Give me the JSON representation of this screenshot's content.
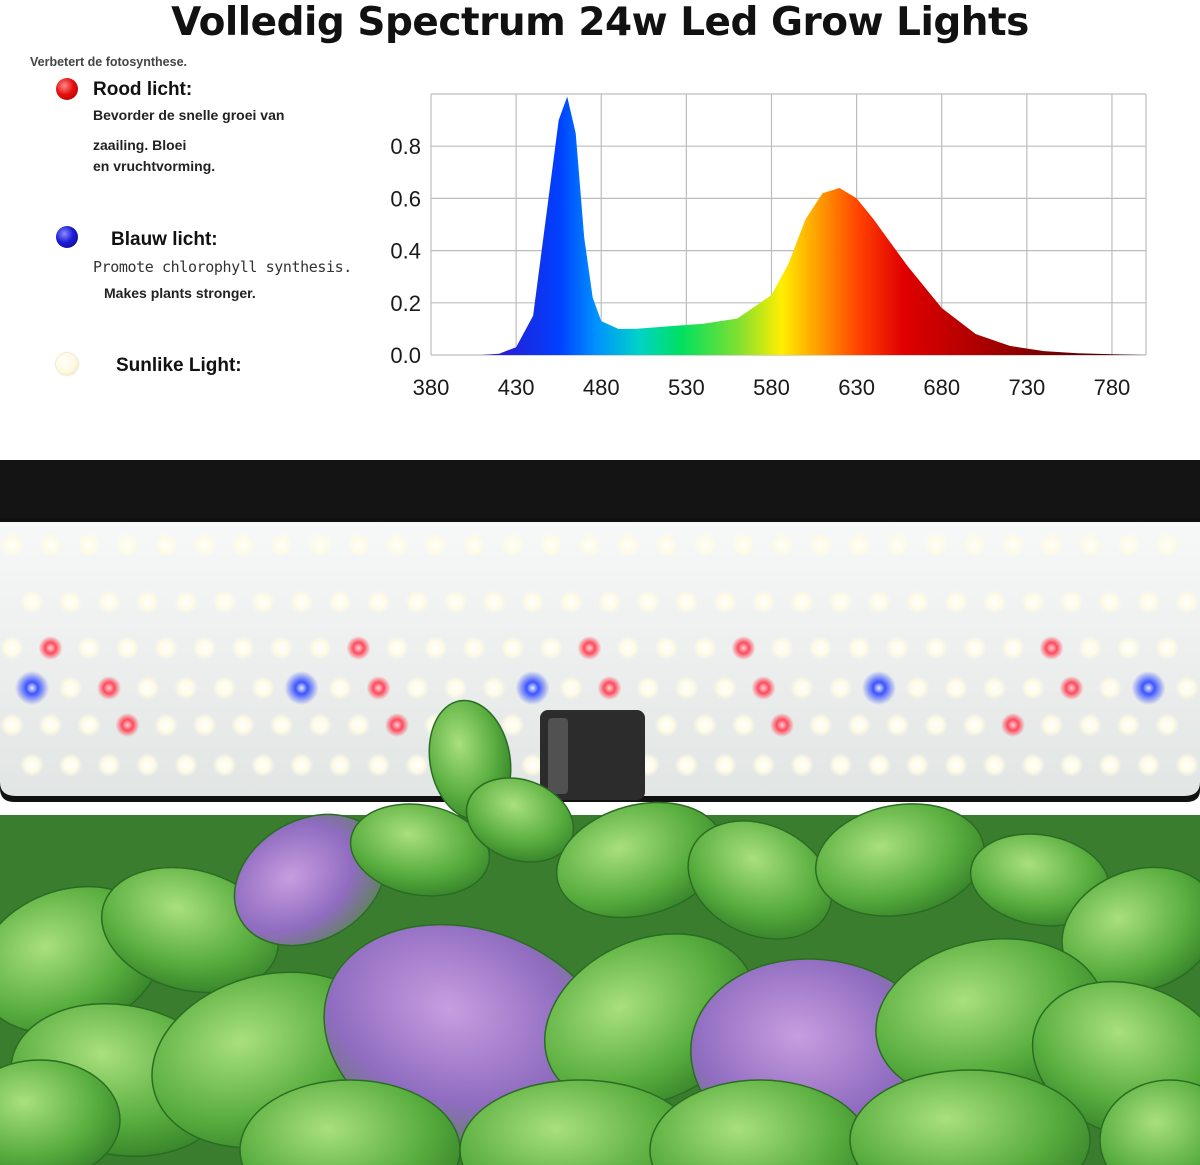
{
  "header": {
    "title": "Volledig Spectrum 24w Led Grow Lights",
    "subtitle": "Verbetert de fotosynthese."
  },
  "legend": {
    "red": {
      "title": "Rood licht:",
      "line1": "Bevorder de snelle groei van",
      "line2": "zaailing. Bloei",
      "line3": "en vruchtvorming.",
      "color": "#e31b1b"
    },
    "blue": {
      "title": "Blauw licht:",
      "line1": "Promote chlorophyll synthesis.",
      "line2": "Makes plants stronger.",
      "color": "#1b1bd8"
    },
    "sunlike": {
      "title": "Sunlike Light:",
      "color": "#fff6d8"
    }
  },
  "chart_data": {
    "type": "area",
    "title": "",
    "xlabel": "",
    "ylabel": "",
    "xlim": [
      380,
      800
    ],
    "ylim": [
      0,
      1.0
    ],
    "grid": true,
    "x_ticks": [
      "380",
      "430",
      "480",
      "530",
      "580",
      "630",
      "680",
      "730",
      "780"
    ],
    "y_ticks": [
      "0.0",
      "0.2",
      "0.4",
      "0.6",
      "0.8"
    ],
    "series": [
      {
        "name": "",
        "x": [
          380,
          410,
          420,
          430,
          440,
          448,
          455,
          460,
          465,
          470,
          475,
          480,
          490,
          500,
          520,
          540,
          560,
          580,
          590,
          600,
          610,
          620,
          630,
          640,
          650,
          660,
          680,
          700,
          720,
          740,
          760,
          780,
          800
        ],
        "y": [
          0.0,
          0.0,
          0.005,
          0.03,
          0.15,
          0.55,
          0.9,
          0.99,
          0.85,
          0.45,
          0.22,
          0.13,
          0.1,
          0.1,
          0.11,
          0.12,
          0.14,
          0.23,
          0.35,
          0.52,
          0.62,
          0.64,
          0.6,
          0.52,
          0.43,
          0.34,
          0.18,
          0.08,
          0.035,
          0.015,
          0.007,
          0.003,
          0.0
        ]
      }
    ]
  },
  "photo": {
    "panel_color": "#f2f4f3",
    "leaf_color": "#4fa23a",
    "red_led_color": "#ff4a5c",
    "blue_led_color": "#3b54ff"
  }
}
